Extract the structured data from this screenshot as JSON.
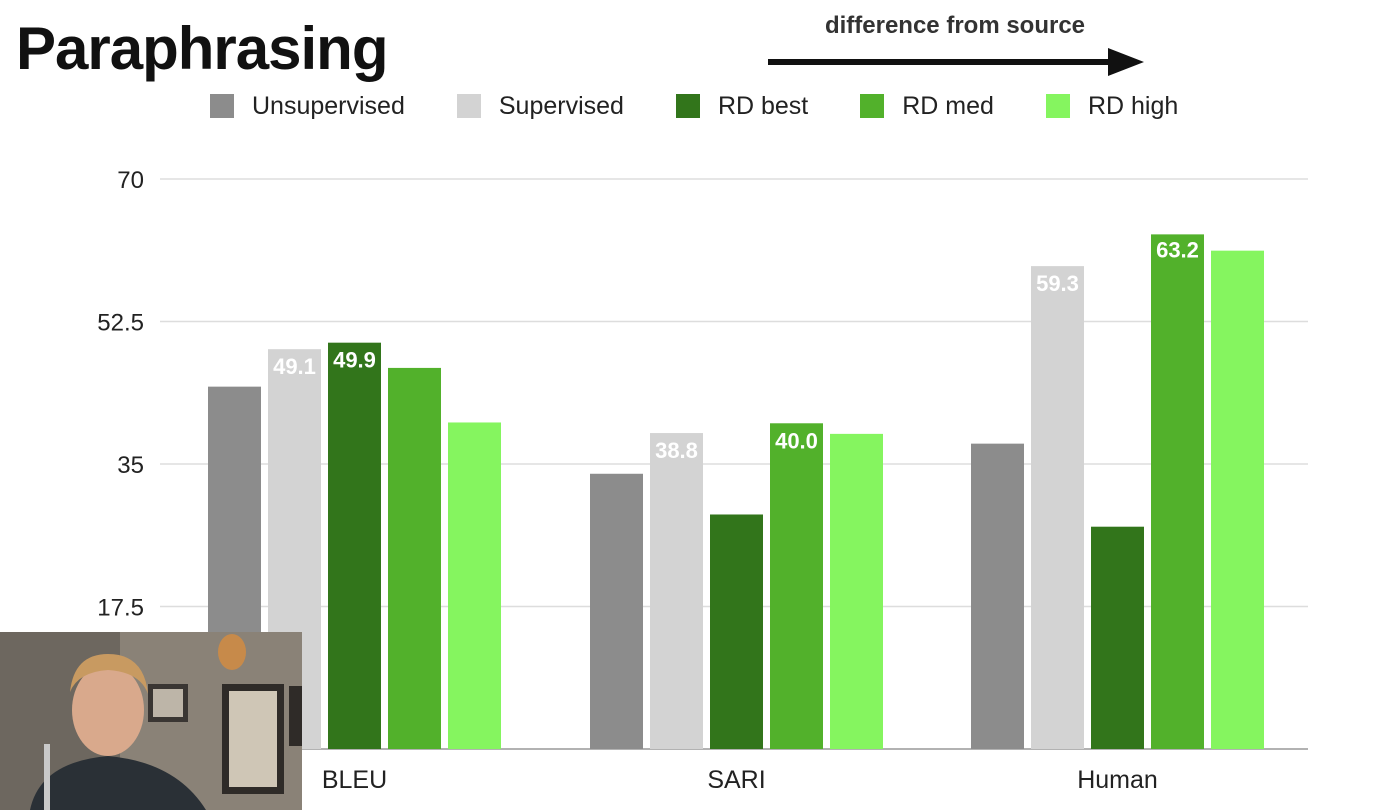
{
  "slide": {
    "title": "Paraphrasing",
    "arrow_label": "difference from source"
  },
  "chart_data": {
    "type": "bar",
    "categories": [
      "BLEU",
      "SARI",
      "Human"
    ],
    "series": [
      {
        "name": "Unsupervised",
        "color": "#8c8c8c",
        "values": [
          44.5,
          33.8,
          37.5
        ],
        "labels": [
          "",
          "",
          ""
        ]
      },
      {
        "name": "Supervised",
        "color": "#d3d3d3",
        "values": [
          49.1,
          38.8,
          59.3
        ],
        "labels": [
          "49.1",
          "38.8",
          "59.3"
        ]
      },
      {
        "name": "RD best",
        "color": "#32751b",
        "values": [
          49.9,
          28.8,
          27.3
        ],
        "labels": [
          "49.9",
          "",
          ""
        ]
      },
      {
        "name": "RD med",
        "color": "#52b12b",
        "values": [
          46.8,
          40.0,
          63.2
        ],
        "labels": [
          "",
          "40.0",
          ""
        ]
      },
      {
        "name": "RD high",
        "color": "#85f55f",
        "values": [
          40.1,
          38.7,
          61.2
        ],
        "labels": [
          "",
          "",
          ""
        ]
      }
    ],
    "yticks": [
      "17.5",
      "35",
      "52.5",
      "70"
    ],
    "ylim": [
      0,
      70
    ],
    "grid": true,
    "legend_position": "top",
    "data_label_value_series": {
      "63.2": "RD med"
    }
  },
  "webcam": {
    "description_icon": "webcam-presenter"
  }
}
